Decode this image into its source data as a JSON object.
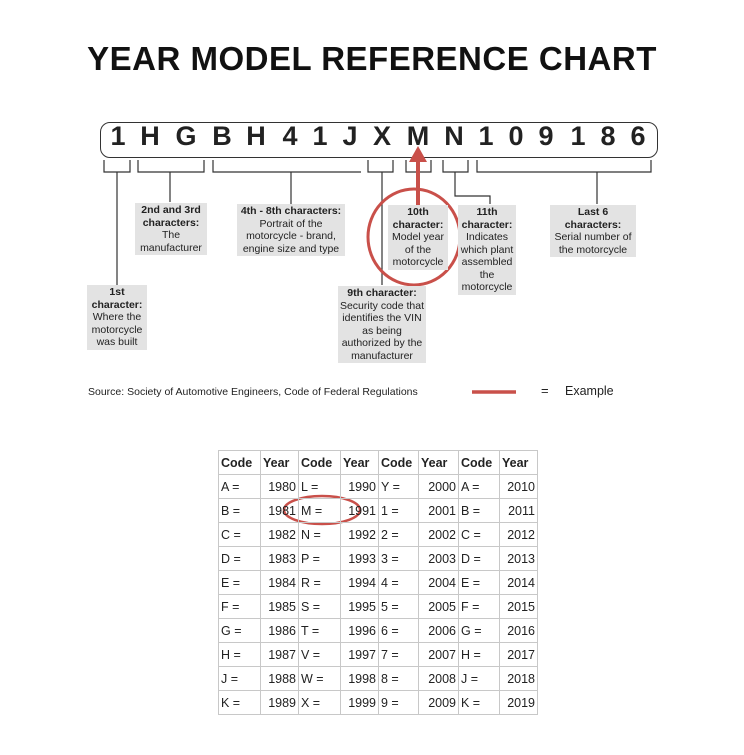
{
  "title": "YEAR MODEL REFERENCE CHART",
  "vin": [
    "1",
    "H",
    "G",
    "B",
    "H",
    "4",
    "1",
    "J",
    "X",
    "M",
    "N",
    "1",
    "0",
    "9",
    "1",
    "8",
    "6"
  ],
  "labels": {
    "first": {
      "heading": "1st character:",
      "text": "Where the motorcycle was built"
    },
    "second_third": {
      "heading": "2nd and 3rd characters:",
      "text": "The manufacturer"
    },
    "fourth_eighth": {
      "heading": "4th - 8th characters:",
      "text": "Portrait of the motorcycle - brand, engine size and type"
    },
    "ninth": {
      "heading": "9th character:",
      "text": "Security code that identifies the VIN as being authorized by the manufacturer"
    },
    "tenth": {
      "heading": "10th character:",
      "text": "Model year of the motorcycle"
    },
    "eleventh": {
      "heading": "11th character:",
      "text": "Indicates which plant assembled the motorcycle"
    },
    "last_six": {
      "heading": "Last 6 characters:",
      "text": "Serial number of the motorcycle"
    }
  },
  "source": "Source:  Society of Automotive Engineers, Code of Federal Regulations",
  "legend": {
    "equals": "=",
    "label": "Example",
    "color": "#c9504a"
  },
  "table": {
    "headers": [
      "Code",
      "Year",
      "Code",
      "Year",
      "Code",
      "Year",
      "Code",
      "Year"
    ],
    "rows": [
      [
        "A =",
        "1980",
        "L =",
        "1990",
        "Y =",
        "2000",
        "A =",
        "2010"
      ],
      [
        "B =",
        "1981",
        "M =",
        "1991",
        "1 =",
        "2001",
        "B =",
        "2011"
      ],
      [
        "C =",
        "1982",
        "N =",
        "1992",
        "2 =",
        "2002",
        "C =",
        "2012"
      ],
      [
        "D =",
        "1983",
        "P =",
        "1993",
        "3 =",
        "2003",
        "D =",
        "2013"
      ],
      [
        "E =",
        "1984",
        "R =",
        "1994",
        "4 =",
        "2004",
        "E =",
        "2014"
      ],
      [
        "F =",
        "1985",
        "S =",
        "1995",
        "5 =",
        "2005",
        "F =",
        "2015"
      ],
      [
        "G =",
        "1986",
        "T =",
        "1996",
        "6 =",
        "2006",
        "G =",
        "2016"
      ],
      [
        "H =",
        "1987",
        "V =",
        "1997",
        "7 =",
        "2007",
        "H =",
        "2017"
      ],
      [
        "J =",
        "1988",
        "W =",
        "1998",
        "8 =",
        "2008",
        "J =",
        "2018"
      ],
      [
        "K =",
        "1989",
        "X =",
        "1999",
        "9 =",
        "2009",
        "K =",
        "2019"
      ]
    ]
  }
}
